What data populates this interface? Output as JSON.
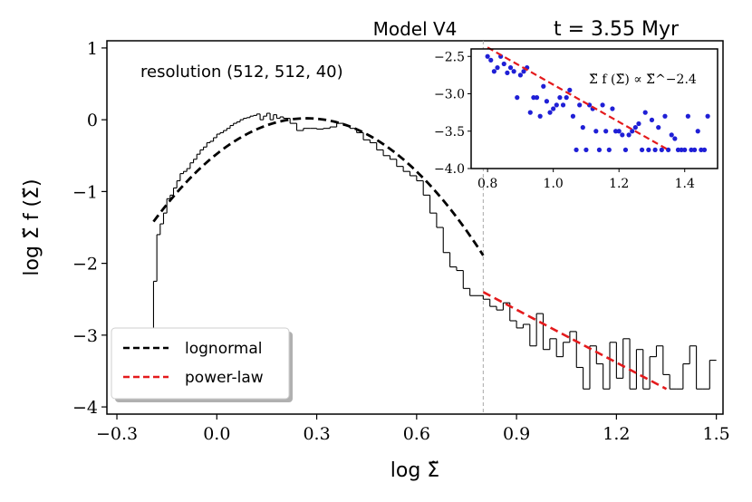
{
  "chart_data": [
    {
      "type": "histogram",
      "title": "Model V4",
      "title_right": "t = 3.55 Myr",
      "annotation": "resolution (512, 512, 40)",
      "xlabel": "log Σ̃",
      "ylabel": "log Σ̃ f (Σ̃)",
      "xlim": [
        -0.33,
        1.52
      ],
      "ylim": [
        -4.1,
        1.1
      ],
      "xticks": [
        -0.3,
        0.0,
        0.3,
        0.6,
        0.9,
        1.2,
        1.5
      ],
      "xtick_labels": [
        "−0.3",
        "0.0",
        "0.3",
        "0.6",
        "0.9",
        "1.2",
        "1.5"
      ],
      "yticks": [
        1,
        0,
        -1,
        -2,
        -3,
        -4
      ],
      "ytick_labels": [
        "1",
        "0",
        "−1",
        "−2",
        "−3",
        "−4"
      ],
      "split_line_x": 0.8,
      "histogram": {
        "x": [
          -0.19,
          -0.18,
          -0.17,
          -0.16,
          -0.15,
          -0.14,
          -0.13,
          -0.12,
          -0.11,
          -0.1,
          -0.09,
          -0.08,
          -0.07,
          -0.06,
          -0.05,
          -0.04,
          -0.03,
          -0.02,
          -0.01,
          0.0,
          0.01,
          0.02,
          0.03,
          0.04,
          0.05,
          0.06,
          0.07,
          0.08,
          0.09,
          0.1,
          0.11,
          0.12,
          0.13,
          0.14,
          0.15,
          0.16,
          0.17,
          0.18,
          0.19,
          0.2,
          0.22,
          0.24,
          0.26,
          0.28,
          0.3,
          0.32,
          0.34,
          0.36,
          0.38,
          0.4,
          0.42,
          0.44,
          0.46,
          0.48,
          0.5,
          0.52,
          0.54,
          0.56,
          0.58,
          0.6,
          0.62,
          0.64,
          0.66,
          0.68,
          0.7,
          0.72,
          0.74,
          0.76,
          0.78,
          0.8,
          0.82,
          0.84,
          0.86,
          0.88,
          0.9,
          0.92,
          0.94,
          0.96,
          0.98,
          1.0,
          1.02,
          1.04,
          1.06,
          1.08,
          1.1,
          1.12,
          1.14,
          1.16,
          1.18,
          1.2,
          1.22,
          1.24,
          1.26,
          1.28,
          1.3,
          1.32,
          1.34,
          1.36,
          1.38,
          1.4,
          1.42,
          1.44,
          1.46,
          1.48
        ],
        "values": [
          -2.25,
          -1.6,
          -1.45,
          -1.3,
          -1.1,
          -1.05,
          -0.95,
          -0.85,
          -0.75,
          -0.72,
          -0.68,
          -0.6,
          -0.55,
          -0.48,
          -0.42,
          -0.38,
          -0.32,
          -0.3,
          -0.25,
          -0.2,
          -0.18,
          -0.15,
          -0.12,
          -0.08,
          -0.05,
          -0.03,
          0.0,
          0.02,
          0.03,
          0.05,
          0.06,
          0.08,
          0.0,
          0.05,
          0.09,
          0.0,
          0.07,
          0.02,
          0.04,
          0.02,
          -0.05,
          -0.15,
          -0.12,
          -0.12,
          -0.13,
          -0.12,
          -0.1,
          -0.05,
          -0.08,
          -0.12,
          -0.18,
          -0.28,
          -0.32,
          -0.42,
          -0.5,
          -0.55,
          -0.65,
          -0.72,
          -0.78,
          -0.85,
          -1.05,
          -1.3,
          -1.5,
          -1.85,
          -2.05,
          -2.1,
          -2.35,
          -2.45,
          -2.45,
          -2.5,
          -2.6,
          -2.65,
          -2.55,
          -2.8,
          -2.9,
          -2.85,
          -3.15,
          -2.7,
          -3.2,
          -3.05,
          -3.3,
          -3.1,
          -2.95,
          -3.45,
          -3.75,
          -3.15,
          -3.4,
          -3.75,
          -3.1,
          -3.6,
          -3.05,
          -3.75,
          -3.2,
          -3.75,
          -3.3,
          -3.15,
          -3.55,
          -3.75,
          -3.75,
          -3.4,
          -3.15,
          -3.75,
          -3.75,
          -3.35
        ]
      },
      "lognormal_fit": {
        "label": "lognormal",
        "color": "#000000",
        "domain": [
          -0.19,
          0.8
        ],
        "peak_x": 0.27,
        "peak_y": 0.02,
        "curvature": 6.8
      },
      "powerlaw_fit": {
        "label": "power-law",
        "color": "#e41a1c",
        "x": [
          0.8,
          1.35
        ],
        "y": [
          -2.4,
          -3.75
        ]
      },
      "legend": {
        "placement": "lower-left",
        "entries": [
          "lognormal",
          "power-law"
        ]
      }
    },
    {
      "type": "scatter",
      "inset": true,
      "placement": "upper-right",
      "annotation": "Σ̃ f (Σ̃) ∝ Σ̃^−2.4",
      "xlim": [
        0.75,
        1.5
      ],
      "ylim": [
        -4.0,
        -2.4
      ],
      "xticks": [
        0.8,
        1.0,
        1.2,
        1.4
      ],
      "xtick_labels": [
        "0.8",
        "1.0",
        "1.2",
        "1.4"
      ],
      "yticks": [
        -2.5,
        -3.0,
        -3.5,
        -4.0
      ],
      "ytick_labels": [
        "−2.5",
        "−3.0",
        "−3.5",
        "−4.0"
      ],
      "point_color": "#1f1fd6",
      "points": {
        "x": [
          0.8,
          0.81,
          0.82,
          0.83,
          0.84,
          0.85,
          0.86,
          0.87,
          0.88,
          0.89,
          0.9,
          0.91,
          0.92,
          0.93,
          0.94,
          0.95,
          0.96,
          0.97,
          0.98,
          0.99,
          1.0,
          1.01,
          1.02,
          1.03,
          1.04,
          1.05,
          1.06,
          1.07,
          1.08,
          1.09,
          1.1,
          1.11,
          1.12,
          1.13,
          1.14,
          1.15,
          1.16,
          1.17,
          1.18,
          1.19,
          1.2,
          1.21,
          1.22,
          1.23,
          1.24,
          1.25,
          1.26,
          1.27,
          1.28,
          1.29,
          1.3,
          1.31,
          1.32,
          1.33,
          1.34,
          1.35,
          1.36,
          1.37,
          1.38,
          1.39,
          1.4,
          1.41,
          1.42,
          1.43,
          1.44,
          1.45,
          1.46,
          1.47
        ],
        "y": [
          -2.5,
          -2.55,
          -2.7,
          -2.65,
          -2.5,
          -2.6,
          -2.72,
          -2.65,
          -2.7,
          -3.05,
          -2.75,
          -2.7,
          -2.65,
          -3.25,
          -3.05,
          -3.05,
          -3.3,
          -2.9,
          -3.1,
          -3.25,
          -3.2,
          -3.15,
          -3.05,
          -3.15,
          -3.05,
          -2.95,
          -3.3,
          -3.75,
          -3.15,
          -3.45,
          -3.75,
          -3.15,
          -3.2,
          -3.5,
          -3.75,
          -3.15,
          -3.5,
          -3.75,
          -3.2,
          -3.5,
          -3.5,
          -3.55,
          -3.75,
          -3.55,
          -3.5,
          -3.45,
          -3.4,
          -3.75,
          -3.25,
          -3.75,
          -3.35,
          -3.75,
          -3.45,
          -3.75,
          -3.3,
          -3.75,
          -3.55,
          -3.6,
          -3.75,
          -3.75,
          -3.75,
          -3.3,
          -3.75,
          -3.75,
          -3.5,
          -3.75,
          -3.75,
          -3.3
        ]
      },
      "fit_line": {
        "color": "#e41a1c",
        "x": [
          0.8,
          1.35
        ],
        "y": [
          -2.38,
          -3.75
        ]
      }
    }
  ]
}
